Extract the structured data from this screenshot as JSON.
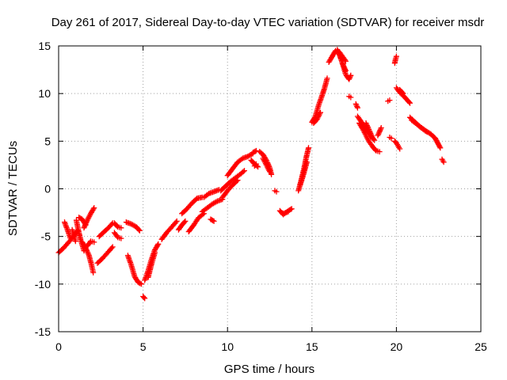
{
  "chart_data": {
    "type": "scatter",
    "title": "Day 261 of 2017, Sidereal Day-to-day VTEC variation (SDTVAR) for receiver msdr",
    "xlabel": "GPS time / hours",
    "ylabel": "SDTVAR / TECUs",
    "xlim": [
      0,
      25
    ],
    "ylim": [
      -15,
      15
    ],
    "xticks": [
      0,
      5,
      10,
      15,
      20,
      25
    ],
    "yticks": [
      -15,
      -10,
      -5,
      0,
      5,
      10,
      15
    ],
    "grid": true,
    "marker": "plus",
    "series_color": "#ff0000",
    "segments": [
      [
        [
          0.0,
          -6.7
        ],
        [
          0.3,
          -6.2
        ],
        [
          0.6,
          -5.6
        ],
        [
          0.9,
          -5.0
        ],
        [
          1.1,
          -4.4
        ]
      ],
      [
        [
          0.35,
          -3.5
        ],
        [
          0.5,
          -4.2
        ],
        [
          0.7,
          -5.2
        ]
      ],
      [
        [
          0.8,
          -4.3
        ],
        [
          1.0,
          -5.5
        ]
      ],
      [
        [
          1.05,
          -3.3
        ],
        [
          1.15,
          -4.2
        ],
        [
          1.3,
          -5.3
        ],
        [
          1.5,
          -6.5
        ]
      ],
      [
        [
          1.2,
          -3.0
        ],
        [
          1.4,
          -3.2
        ],
        [
          1.6,
          -3.8
        ]
      ],
      [
        [
          1.4,
          -5.6
        ],
        [
          1.6,
          -6.2
        ],
        [
          1.8,
          -7.0
        ],
        [
          1.95,
          -8.0
        ],
        [
          2.05,
          -8.8
        ]
      ],
      [
        [
          1.5,
          -4.1
        ],
        [
          1.7,
          -3.3
        ],
        [
          1.9,
          -2.6
        ],
        [
          2.1,
          -2.0
        ]
      ],
      [
        [
          1.7,
          -6.0
        ],
        [
          1.9,
          -5.5
        ],
        [
          2.1,
          -5.6
        ]
      ],
      [
        [
          2.3,
          -7.8
        ],
        [
          2.6,
          -7.3
        ],
        [
          2.9,
          -6.7
        ],
        [
          3.2,
          -6.1
        ]
      ],
      [
        [
          2.4,
          -5.0
        ],
        [
          2.7,
          -4.5
        ],
        [
          2.95,
          -4.1
        ],
        [
          3.2,
          -3.6
        ]
      ],
      [
        [
          3.3,
          -3.6
        ],
        [
          3.5,
          -4.0
        ],
        [
          3.7,
          -4.1
        ]
      ],
      [
        [
          3.3,
          -4.6
        ],
        [
          3.5,
          -5.1
        ],
        [
          3.7,
          -5.2
        ]
      ],
      [
        [
          4.0,
          -3.5
        ],
        [
          4.3,
          -3.7
        ],
        [
          4.6,
          -4.0
        ],
        [
          4.8,
          -4.4
        ]
      ],
      [
        [
          4.1,
          -7.0
        ],
        [
          4.3,
          -8.0
        ],
        [
          4.5,
          -9.2
        ],
        [
          4.7,
          -9.8
        ],
        [
          4.9,
          -10.0
        ]
      ],
      [
        [
          5.0,
          -11.3
        ],
        [
          5.1,
          -11.5
        ]
      ],
      [
        [
          5.1,
          -9.6
        ],
        [
          5.3,
          -8.6
        ],
        [
          5.5,
          -7.4
        ],
        [
          5.7,
          -6.4
        ],
        [
          5.9,
          -5.8
        ]
      ],
      [
        [
          5.3,
          -9.3
        ],
        [
          5.5,
          -7.9
        ],
        [
          5.7,
          -6.7
        ]
      ],
      [
        [
          6.1,
          -5.3
        ],
        [
          6.4,
          -4.6
        ],
        [
          6.7,
          -4.0
        ],
        [
          7.0,
          -3.4
        ]
      ],
      [
        [
          7.1,
          -4.3
        ],
        [
          7.3,
          -3.8
        ],
        [
          7.5,
          -3.4
        ]
      ],
      [
        [
          7.3,
          -2.6
        ],
        [
          7.6,
          -2.1
        ],
        [
          7.9,
          -1.5
        ],
        [
          8.2,
          -1.0
        ],
        [
          8.5,
          -0.9
        ]
      ],
      [
        [
          7.7,
          -4.5
        ],
        [
          8.0,
          -3.8
        ],
        [
          8.3,
          -3.0
        ],
        [
          8.6,
          -2.6
        ]
      ],
      [
        [
          8.5,
          -2.4
        ],
        [
          8.8,
          -2.0
        ],
        [
          9.1,
          -1.6
        ],
        [
          9.4,
          -1.3
        ],
        [
          9.7,
          -1.1
        ]
      ],
      [
        [
          8.6,
          -0.9
        ],
        [
          8.9,
          -0.5
        ],
        [
          9.2,
          -0.3
        ],
        [
          9.5,
          -0.1
        ]
      ],
      [
        [
          9.0,
          -3.2
        ],
        [
          9.2,
          -3.4
        ]
      ],
      [
        [
          9.6,
          -0.2
        ],
        [
          9.9,
          0.3
        ],
        [
          10.2,
          0.8
        ],
        [
          10.5,
          1.2
        ],
        [
          10.8,
          1.6
        ],
        [
          11.0,
          1.9
        ]
      ],
      [
        [
          9.7,
          -0.9
        ],
        [
          10.0,
          -0.2
        ],
        [
          10.3,
          0.4
        ],
        [
          10.6,
          0.9
        ]
      ],
      [
        [
          10.0,
          1.4
        ],
        [
          10.3,
          2.1
        ],
        [
          10.6,
          2.8
        ],
        [
          10.9,
          3.2
        ],
        [
          11.2,
          3.4
        ],
        [
          11.5,
          3.7
        ]
      ],
      [
        [
          11.4,
          3.0
        ],
        [
          11.6,
          2.6
        ],
        [
          11.8,
          2.3
        ]
      ],
      [
        [
          11.6,
          2.4
        ],
        [
          11.7,
          2.6
        ]
      ],
      [
        [
          11.5,
          3.8
        ],
        [
          11.7,
          4.0
        ]
      ],
      [
        [
          11.9,
          3.9
        ],
        [
          12.1,
          3.6
        ],
        [
          12.3,
          3.0
        ],
        [
          12.5,
          2.2
        ],
        [
          12.6,
          1.5
        ]
      ],
      [
        [
          12.1,
          3.2
        ],
        [
          12.3,
          2.5
        ],
        [
          12.5,
          1.8
        ]
      ],
      [
        [
          12.8,
          -0.2
        ],
        [
          12.9,
          -0.3
        ]
      ],
      [
        [
          13.1,
          -2.3
        ],
        [
          13.3,
          -2.7
        ],
        [
          13.6,
          -2.3
        ],
        [
          13.8,
          -2.1
        ]
      ],
      [
        [
          13.3,
          -2.6
        ],
        [
          13.6,
          -2.4
        ]
      ],
      [
        [
          14.2,
          -0.2
        ],
        [
          14.35,
          0.8
        ],
        [
          14.5,
          1.9
        ],
        [
          14.65,
          3.2
        ],
        [
          14.8,
          4.3
        ]
      ],
      [
        [
          14.3,
          0.4
        ],
        [
          14.5,
          1.5
        ],
        [
          14.7,
          2.8
        ]
      ],
      [
        [
          15.0,
          7.0
        ],
        [
          15.2,
          7.6
        ],
        [
          15.4,
          8.8
        ],
        [
          15.6,
          9.8
        ],
        [
          15.75,
          10.6
        ],
        [
          15.9,
          11.6
        ]
      ],
      [
        [
          15.1,
          6.9
        ],
        [
          15.3,
          7.3
        ],
        [
          15.5,
          8.0
        ]
      ],
      [
        [
          16.0,
          13.3
        ],
        [
          16.2,
          13.9
        ],
        [
          16.4,
          14.5
        ],
        [
          16.6,
          14.4
        ],
        [
          16.8,
          13.9
        ],
        [
          17.0,
          13.4
        ]
      ],
      [
        [
          16.5,
          14.6
        ],
        [
          16.7,
          13.8
        ],
        [
          16.85,
          12.9
        ],
        [
          17.0,
          12.0
        ],
        [
          17.15,
          11.6
        ]
      ],
      [
        [
          16.6,
          14.2
        ],
        [
          16.8,
          13.2
        ],
        [
          17.0,
          12.4
        ]
      ],
      [
        [
          17.2,
          11.5
        ],
        [
          17.3,
          11.9
        ]
      ],
      [
        [
          17.2,
          9.7
        ],
        [
          17.3,
          9.6
        ]
      ],
      [
        [
          17.6,
          8.9
        ],
        [
          17.7,
          8.5
        ]
      ],
      [
        [
          17.7,
          7.6
        ],
        [
          17.9,
          7.1
        ],
        [
          18.1,
          6.6
        ],
        [
          18.3,
          6.0
        ],
        [
          18.5,
          5.5
        ],
        [
          18.7,
          5.1
        ]
      ],
      [
        [
          17.8,
          6.9
        ],
        [
          18.0,
          6.3
        ],
        [
          18.2,
          5.6
        ],
        [
          18.4,
          4.9
        ],
        [
          18.6,
          4.4
        ],
        [
          18.8,
          4.0
        ],
        [
          19.0,
          3.9
        ]
      ],
      [
        [
          18.2,
          6.9
        ],
        [
          18.4,
          6.1
        ],
        [
          18.6,
          5.3
        ]
      ],
      [
        [
          18.9,
          5.6
        ],
        [
          19.0,
          6.0
        ],
        [
          19.1,
          6.4
        ]
      ],
      [
        [
          19.5,
          9.2
        ],
        [
          19.6,
          9.3
        ]
      ],
      [
        [
          19.6,
          5.4
        ],
        [
          19.7,
          5.3
        ]
      ],
      [
        [
          19.9,
          13.2
        ],
        [
          19.95,
          13.6
        ],
        [
          20.0,
          13.9
        ]
      ],
      [
        [
          19.9,
          5.0
        ],
        [
          20.0,
          4.8
        ],
        [
          20.1,
          4.5
        ],
        [
          20.2,
          4.2
        ]
      ],
      [
        [
          20.0,
          10.6
        ],
        [
          20.2,
          10.1
        ],
        [
          20.4,
          9.8
        ],
        [
          20.6,
          9.4
        ],
        [
          20.8,
          9.0
        ]
      ],
      [
        [
          20.2,
          10.4
        ],
        [
          20.4,
          10.0
        ]
      ],
      [
        [
          20.8,
          7.5
        ],
        [
          21.1,
          7.0
        ],
        [
          21.4,
          6.5
        ],
        [
          21.7,
          6.1
        ],
        [
          22.0,
          5.8
        ],
        [
          22.3,
          5.3
        ],
        [
          22.6,
          4.3
        ]
      ],
      [
        [
          20.9,
          7.2
        ],
        [
          21.2,
          6.8
        ],
        [
          21.5,
          6.4
        ],
        [
          21.8,
          6.0
        ]
      ],
      [
        [
          22.7,
          3.1
        ],
        [
          22.8,
          2.8
        ]
      ]
    ]
  }
}
